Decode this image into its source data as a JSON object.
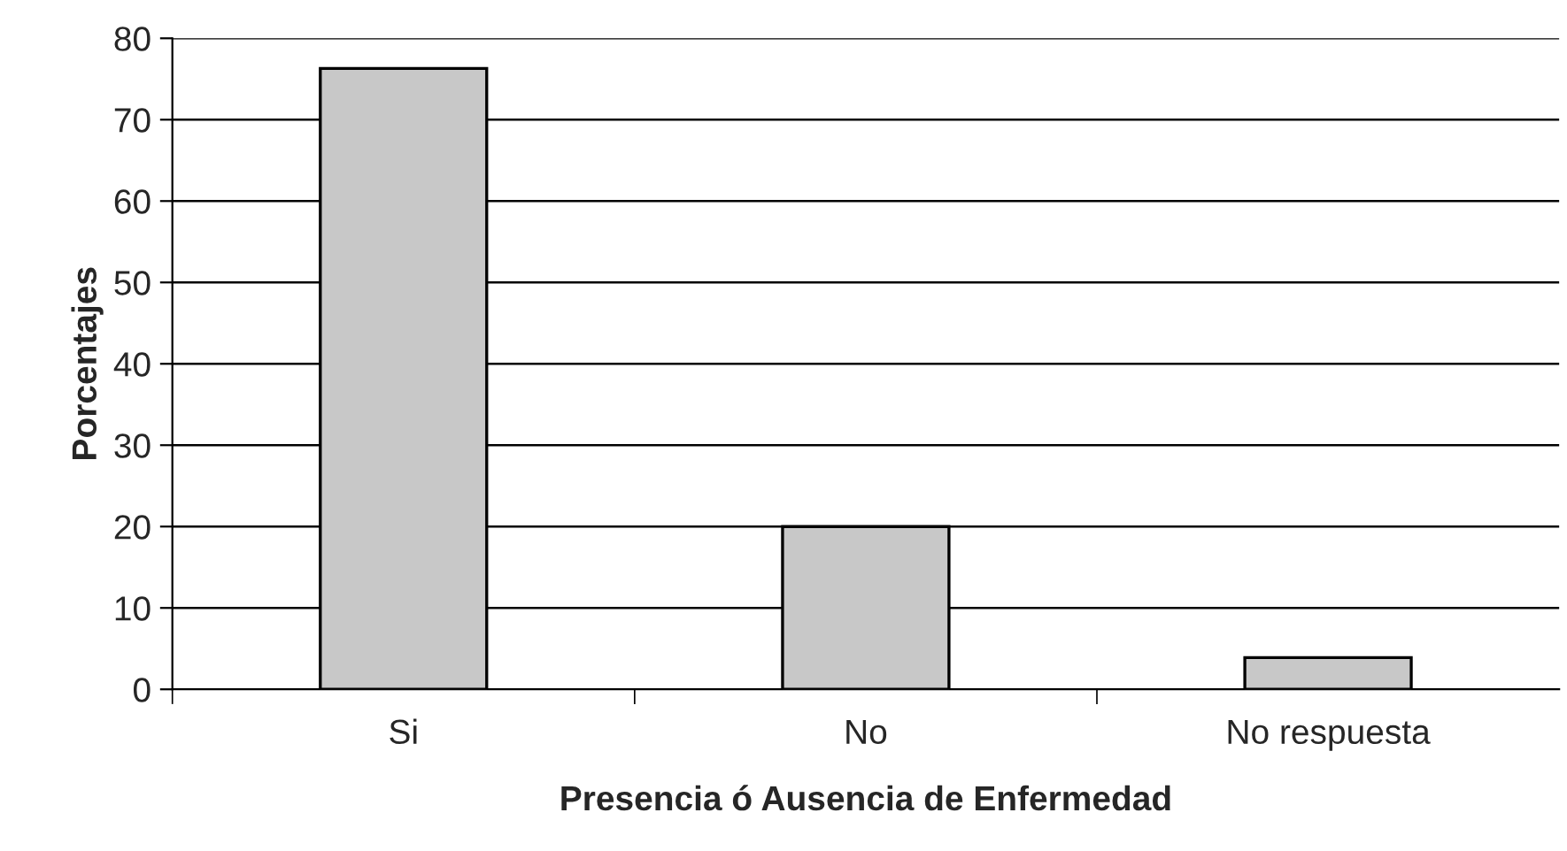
{
  "chart_data": {
    "type": "bar",
    "xlabel": "Presencia ó Ausencia de Enfermedad",
    "ylabel": "Porcentajes",
    "categories": [
      "Si",
      "No",
      "No respuesta"
    ],
    "values": [
      76.3,
      20,
      3.9
    ],
    "color": "#c8c8c8",
    "ylim": [
      0,
      80
    ],
    "yticks": [
      0,
      10,
      20,
      30,
      40,
      50,
      60,
      70,
      80
    ],
    "grid": "y"
  }
}
